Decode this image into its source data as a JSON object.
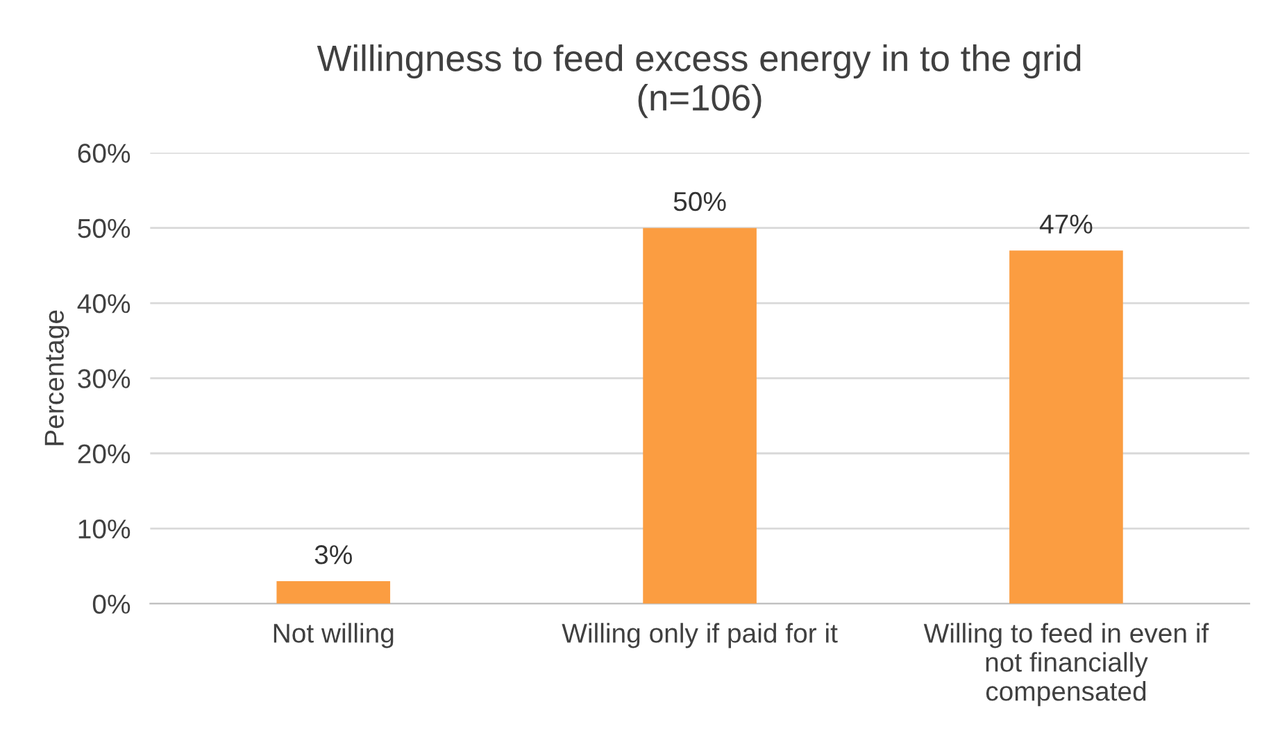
{
  "chart_data": {
    "type": "bar",
    "title": "Willingness to feed excess energy in to the grid\n(n=106)",
    "ylabel": "Percentage",
    "categories": [
      "Not willing",
      "Willing only if paid for it",
      "Willing to feed in even if\nnot financially\ncompensated"
    ],
    "values": [
      3,
      50,
      47
    ],
    "color": "#fb9d41",
    "value_labels": [
      "3%",
      "50%",
      "47%"
    ],
    "ylim": [
      0,
      60
    ],
    "yticks": [
      {
        "value": 0,
        "label": "0%"
      },
      {
        "value": 10,
        "label": "10%"
      },
      {
        "value": 20,
        "label": "20%"
      },
      {
        "value": 30,
        "label": "30%"
      },
      {
        "value": 40,
        "label": "40%"
      },
      {
        "value": 50,
        "label": "50%"
      },
      {
        "value": 60,
        "label": "60%"
      }
    ],
    "grid": "y",
    "legend": false
  }
}
